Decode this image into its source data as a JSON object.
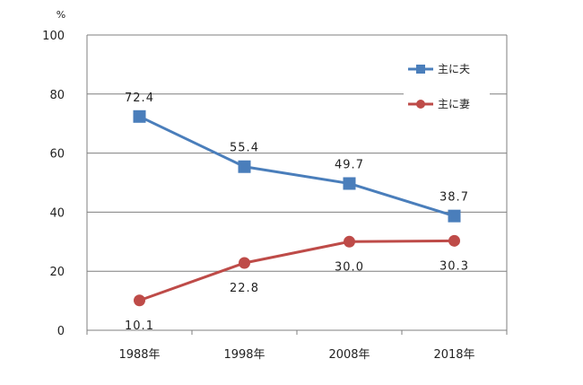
{
  "chart_data": {
    "type": "line",
    "unit_label": "%",
    "categories": [
      "1988年",
      "1998年",
      "2008年",
      "2018年"
    ],
    "ylim": [
      0,
      100
    ],
    "yticks": [
      0,
      20,
      40,
      60,
      80,
      100
    ],
    "grid": true,
    "legend_position": "top-right",
    "series": [
      {
        "name": "主に夫",
        "values": [
          72.4,
          55.4,
          49.7,
          38.7
        ],
        "color": "#4a7ebb",
        "marker": "square"
      },
      {
        "name": "主に妻",
        "values": [
          10.1,
          22.8,
          30.0,
          30.3
        ],
        "color": "#be4b48",
        "marker": "circle"
      }
    ]
  }
}
